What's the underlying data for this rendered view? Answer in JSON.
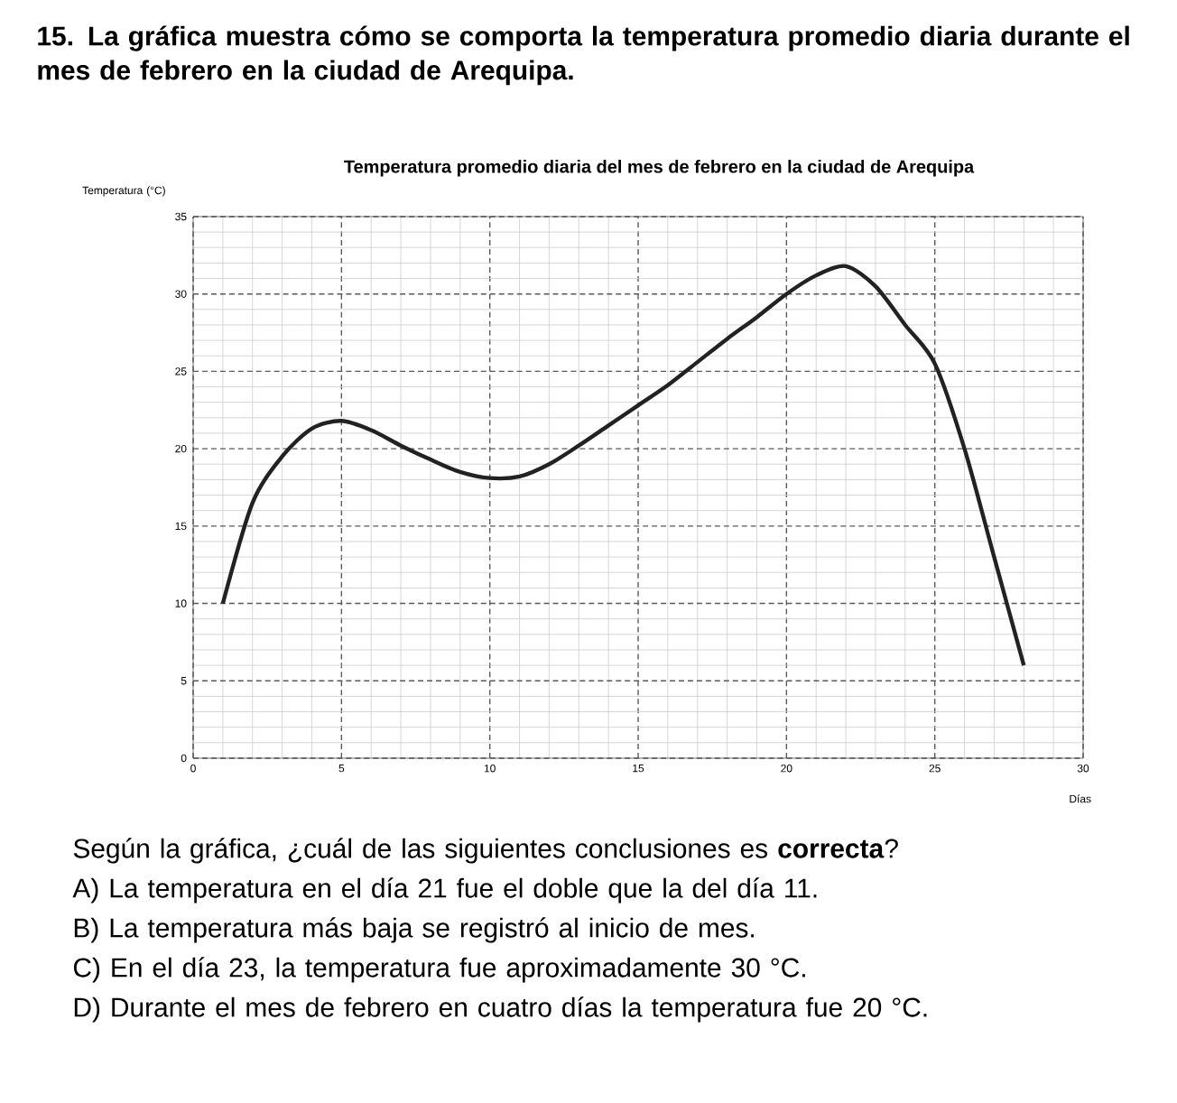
{
  "chart_data": {
    "type": "line",
    "title": "Temperatura promedio diaria del mes de febrero en la ciudad de Arequipa",
    "xlabel": "Días",
    "ylabel": "Temperatura (°C)",
    "x": [
      1,
      2,
      3,
      4,
      5,
      6,
      7,
      8,
      9,
      10,
      11,
      12,
      13,
      14,
      15,
      16,
      17,
      18,
      19,
      20,
      21,
      22,
      23,
      24,
      25,
      26,
      27,
      28
    ],
    "series": [
      {
        "color": "#222222",
        "values": [
          10,
          16.5,
          19.5,
          21.3,
          21.8,
          21.2,
          20.2,
          19.3,
          18.5,
          18.1,
          18.2,
          19,
          20.2,
          21.5,
          22.8,
          24.1,
          25.6,
          27.1,
          28.5,
          30,
          31.2,
          31.8,
          30.5,
          28,
          25.5,
          20,
          13,
          6
        ]
      }
    ],
    "xlim": [
      0,
      30
    ],
    "ylim": [
      0,
      35
    ],
    "xticks": [
      0,
      5,
      10,
      15,
      20,
      25,
      30
    ],
    "yticks": [
      0,
      5,
      10,
      15,
      20,
      25,
      30,
      35
    ],
    "grid": true,
    "marker": "none",
    "line_style": "solid",
    "annotations": [
      "15. La gráfica muestra cómo se comporta la temperatura promedio diaria durante el mes de febrero en la ciudad de Arequipa.",
      "Según la gráfica, ¿cuál de las siguientes conclusiones es **correcta**?",
      "A) La temperatura en el día 21 fue el doble que la del día 11.",
      "B) La temperatura más baja se registró al inicio de mes.",
      "C) En el día 23, la temperatura fue aproximadamente 30 °C.",
      "D) Durante el mes de febrero en cuatro días la temperatura fue 20 °C."
    ]
  }
}
